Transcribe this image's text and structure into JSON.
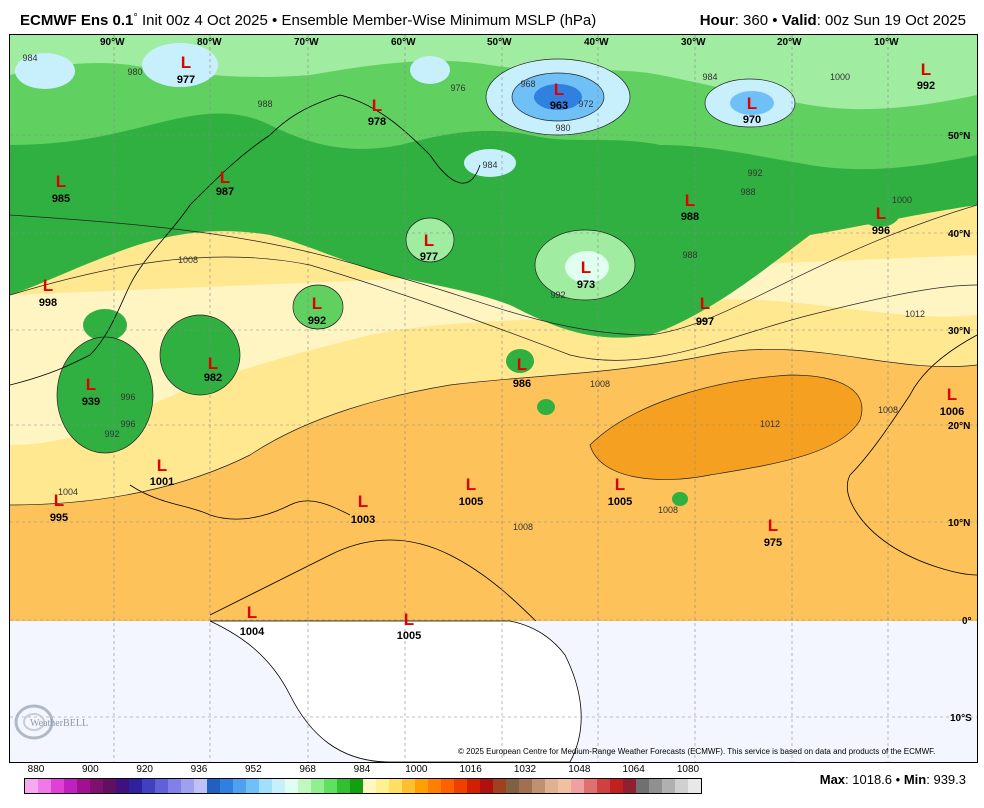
{
  "header": {
    "model": "ECMWF Ens 0.1",
    "degree": "°",
    "init": "Init 00z 4 Oct 2025",
    "bullet": "•",
    "product": "Ensemble Member-Wise Minimum MSLP (hPa)",
    "hour_label": "Hour",
    "hour_value": ": 360",
    "valid_label": "Valid",
    "valid_value": ": 00z Sun 19 Oct 2025"
  },
  "longitude_labels": [
    "90°W",
    "80°W",
    "70°W",
    "60°W",
    "50°W",
    "40°W",
    "30°W",
    "20°W",
    "10°W"
  ],
  "latitude_labels": [
    "50°N",
    "40°N",
    "30°N",
    "20°N",
    "10°N",
    "0°",
    "10°S"
  ],
  "lows": [
    {
      "label": "L",
      "value": "977"
    },
    {
      "label": "L",
      "value": "963"
    },
    {
      "label": "L",
      "value": "970"
    },
    {
      "label": "L",
      "value": "978"
    },
    {
      "label": "L",
      "value": "992"
    },
    {
      "label": "L",
      "value": "985"
    },
    {
      "label": "L",
      "value": "987"
    },
    {
      "label": "L",
      "value": "988"
    },
    {
      "label": "L",
      "value": "996"
    },
    {
      "label": "L",
      "value": "977"
    },
    {
      "label": "L",
      "value": "973"
    },
    {
      "label": "L",
      "value": "998"
    },
    {
      "label": "L",
      "value": "992"
    },
    {
      "label": "L",
      "value": "997"
    },
    {
      "label": "L",
      "value": "982"
    },
    {
      "label": "L",
      "value": "939"
    },
    {
      "label": "L",
      "value": "986"
    },
    {
      "label": "L",
      "value": "1006"
    },
    {
      "label": "L",
      "value": "1001"
    },
    {
      "label": "L",
      "value": "1005"
    },
    {
      "label": "L",
      "value": "1005"
    },
    {
      "label": "L",
      "value": "995"
    },
    {
      "label": "L",
      "value": "1003"
    },
    {
      "label": "L",
      "value": "975"
    },
    {
      "label": "L",
      "value": "1004"
    },
    {
      "label": "L",
      "value": "1005"
    }
  ],
  "contour_labels": [
    "984",
    "980",
    "976",
    "968",
    "972",
    "980",
    "984",
    "988",
    "984",
    "988",
    "992",
    "996",
    "988",
    "992",
    "1000",
    "1008",
    "1008",
    "1012",
    "1012",
    "1008",
    "1008",
    "1008",
    "1004",
    "996",
    "992",
    "1000"
  ],
  "copyright": "© 2025 European Centre for Medium-Range Weather Forecasts (ECMWF). This service is based on data and products of the ECMWF.",
  "logo_text": "WeatherBELL",
  "colorbar": {
    "labels": [
      "880",
      "900",
      "920",
      "936",
      "952",
      "968",
      "984",
      "1000",
      "1016",
      "1032",
      "1048",
      "1064",
      "1080"
    ],
    "colors": [
      "#f7a8f0",
      "#f078e8",
      "#e040d8",
      "#c020c0",
      "#a01090",
      "#801070",
      "#601060",
      "#401080",
      "#3020a0",
      "#4040c0",
      "#6060d8",
      "#8080e8",
      "#a0a0f0",
      "#c0c0f8",
      "#2060c0",
      "#3080e0",
      "#50a0f0",
      "#70c0f8",
      "#a0e0fc",
      "#c8f0fc",
      "#e0fff0",
      "#c0f8c0",
      "#90f090",
      "#60e060",
      "#30c030",
      "#10a010",
      "#fff8c0",
      "#fff090",
      "#ffe060",
      "#ffc030",
      "#ffa000",
      "#ff8000",
      "#ff6000",
      "#f04000",
      "#d02000",
      "#b01010",
      "#a04020",
      "#806040",
      "#a07050",
      "#c09070",
      "#e0b090",
      "#f0c0a0",
      "#f0a0a0",
      "#e07070",
      "#d04040",
      "#c02020",
      "#902030",
      "#707070",
      "#909090",
      "#b0b0b0",
      "#d0d0d0",
      "#e8e8e8"
    ]
  },
  "stats": {
    "max_label": "Max",
    "max_value": ": 1018.6",
    "sep": "•",
    "min_label": "Min",
    "min_value": ": 939.3"
  }
}
